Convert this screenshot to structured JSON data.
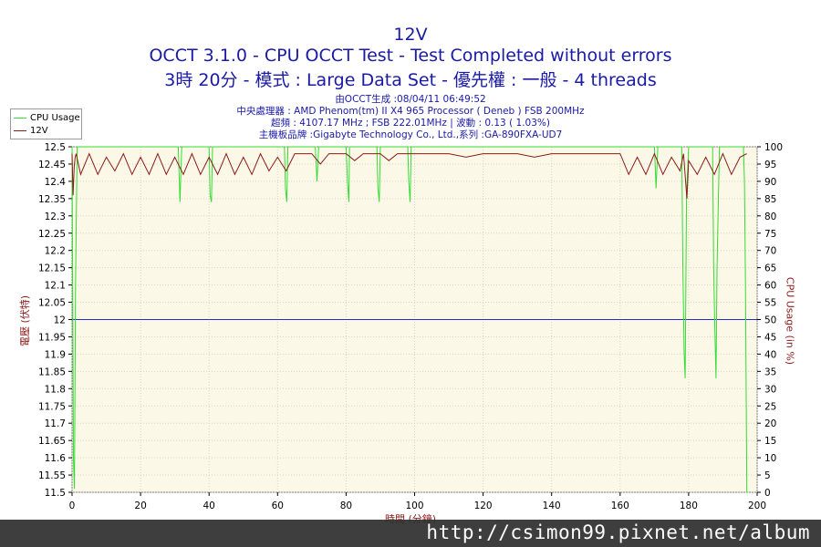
{
  "chart_data": {
    "type": "line",
    "title": "12V",
    "subtitle": "OCCT 3.1.0 - CPU OCCT Test - Test Completed without errors",
    "subtitle2": "3時 20分 - 模式 : Large Data Set - 優先權 : 一般 - 4 threads",
    "info": [
      "由OCCT生成 :08/04/11 06:49:52",
      "中央處理器 : AMD Phenom(tm) II X4 965 Processor ( Deneb ) FSB 200MHz",
      "超頻 : 4107.17 MHz ; FSB 222.01MHz | 波動 : 0.13 ( 1.03%)",
      "主機板品牌 :Gigabyte Technology Co., Ltd.,系列 :GA-890FXA-UD7"
    ],
    "xlabel": "時間 (分鐘)",
    "ylabel_left": "電壓 (伏特)",
    "ylabel_right": "CPU Usage (in %)",
    "xlim": [
      0,
      200
    ],
    "ylim_left": [
      11.5,
      12.5
    ],
    "ylim_right": [
      0,
      100
    ],
    "x_ticks": [
      0,
      20,
      40,
      60,
      80,
      100,
      120,
      140,
      160,
      180,
      200
    ],
    "y_left_ticks": [
      "11.5",
      "11.55",
      "11.6",
      "11.65",
      "11.7",
      "11.75",
      "11.8",
      "11.85",
      "11.9",
      "11.95",
      "12",
      "12.05",
      "12.1",
      "12.15",
      "12.2",
      "12.25",
      "12.3",
      "12.35",
      "12.4",
      "12.45",
      "12.5"
    ],
    "y_right_ticks": [
      "0",
      "5",
      "10",
      "15",
      "20",
      "25",
      "30",
      "35",
      "40",
      "45",
      "50",
      "55",
      "60",
      "65",
      "70",
      "75",
      "80",
      "85",
      "90",
      "95",
      "100"
    ],
    "reference_line": {
      "y": 12,
      "color": "#2a2ac8"
    },
    "grid": true,
    "legend_position": "top-left",
    "plot_background": "#fbf8e8",
    "series": [
      {
        "name": "CPU Usage",
        "axis": "right",
        "color": "#33dd33",
        "x": [
          0,
          0.4,
          0.7,
          1,
          1.5,
          2,
          3,
          10,
          20,
          31,
          31.5,
          32,
          40,
          40.3,
          40.7,
          41,
          62,
          62.3,
          62.7,
          63,
          71,
          71.5,
          72,
          80,
          80.4,
          80.8,
          81,
          89,
          89.3,
          89.7,
          90,
          98,
          98.3,
          98.7,
          99,
          110,
          120,
          140,
          160,
          170,
          170.5,
          171,
          178,
          178.3,
          178.7,
          179,
          179.4,
          180,
          187,
          187.3,
          187.6,
          188,
          188.3,
          188.7,
          189,
          196,
          196.3,
          196.6,
          197,
          197.3
        ],
        "y": [
          100,
          10,
          1,
          60,
          100,
          100,
          100,
          100,
          100,
          100,
          84,
          100,
          100,
          86,
          84,
          100,
          100,
          88,
          84,
          100,
          100,
          90,
          100,
          100,
          90,
          84,
          100,
          100,
          88,
          84,
          100,
          100,
          90,
          84,
          100,
          100,
          100,
          100,
          100,
          100,
          88,
          100,
          100,
          66,
          40,
          33,
          86,
          100,
          100,
          66,
          50,
          33,
          66,
          86,
          100,
          100,
          90,
          60,
          0,
          0
        ]
      },
      {
        "name": "12V",
        "axis": "left",
        "color": "#8b1a1a",
        "x": [
          0,
          0.3,
          0.6,
          0.9,
          1.2,
          2.5,
          5,
          7.5,
          10,
          12.5,
          15,
          17.5,
          20,
          22.5,
          25,
          27.5,
          30,
          32.5,
          35,
          37.5,
          40,
          42.5,
          45,
          47.5,
          50,
          52.5,
          55,
          57.5,
          60,
          62.5,
          65,
          67.5,
          70,
          72.5,
          75,
          77.5,
          80,
          82.5,
          85,
          87.5,
          90,
          92.5,
          95,
          97.5,
          100,
          105,
          110,
          115,
          120,
          125,
          130,
          135,
          140,
          145,
          150,
          155,
          160,
          162.5,
          165,
          167.5,
          170,
          172.5,
          175,
          177.5,
          178.5,
          179.5,
          180,
          182.5,
          185,
          187.5,
          190,
          192.5,
          195,
          197
        ],
        "y": [
          12.48,
          12.36,
          12.44,
          12.47,
          12.48,
          12.42,
          12.48,
          12.42,
          12.47,
          12.43,
          12.48,
          12.42,
          12.47,
          12.42,
          12.48,
          12.42,
          12.47,
          12.42,
          12.48,
          12.42,
          12.47,
          12.42,
          12.48,
          12.42,
          12.47,
          12.42,
          12.48,
          12.43,
          12.47,
          12.43,
          12.48,
          12.48,
          12.48,
          12.45,
          12.48,
          12.48,
          12.48,
          12.46,
          12.48,
          12.48,
          12.48,
          12.46,
          12.48,
          12.48,
          12.48,
          12.48,
          12.48,
          12.47,
          12.48,
          12.48,
          12.48,
          12.47,
          12.48,
          12.48,
          12.48,
          12.48,
          12.48,
          12.42,
          12.47,
          12.42,
          12.48,
          12.42,
          12.47,
          12.43,
          12.48,
          12.35,
          12.46,
          12.42,
          12.47,
          12.42,
          12.48,
          12.42,
          12.47,
          12.48
        ]
      }
    ]
  },
  "watermark": "http://csimon99.pixnet.net/album"
}
